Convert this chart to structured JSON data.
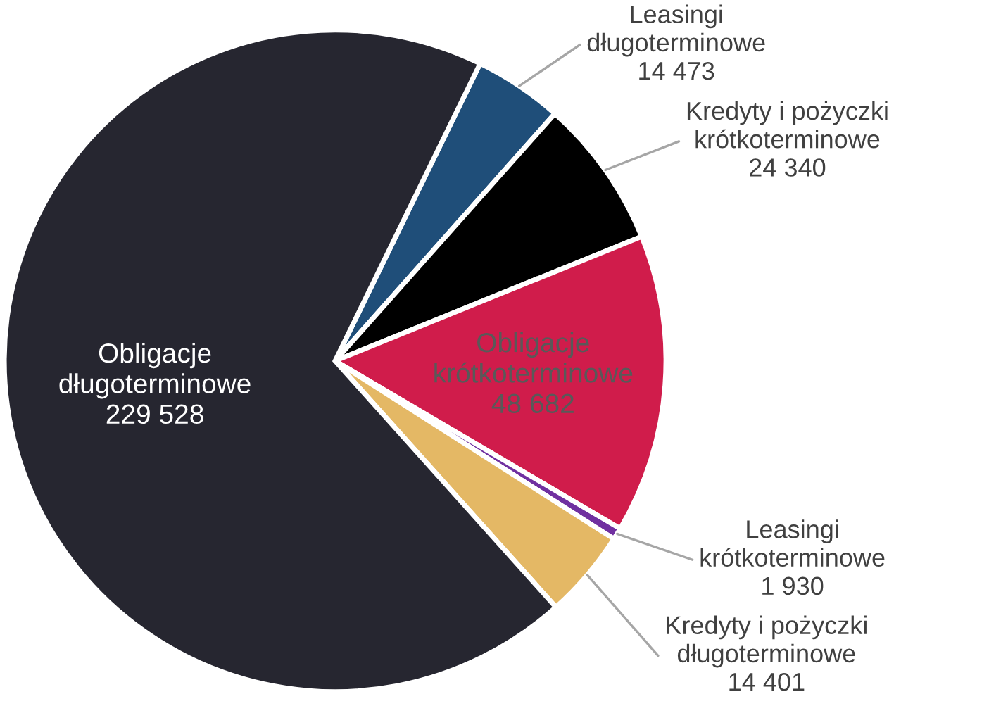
{
  "chart_data": {
    "type": "pie",
    "categories": [
      "Leasingi długoterminowe",
      "Kredyty i pożyczki krótkoterminowe",
      "Obligacje krótkoterminowe",
      "Leasingi krótkoterminowe",
      "Kredyty i pożyczki długoterminowe",
      "Obligacje długoterminowe"
    ],
    "values": [
      14473,
      24340,
      48682,
      1930,
      14401,
      229528
    ],
    "value_labels": [
      "14 473",
      "24 340",
      "48 682",
      "1 930",
      "14 401",
      "229 528"
    ],
    "colors": [
      "#1f4e79",
      "#000000",
      "#d01c4b",
      "#7030a0",
      "#e4b865",
      "#262630"
    ]
  }
}
